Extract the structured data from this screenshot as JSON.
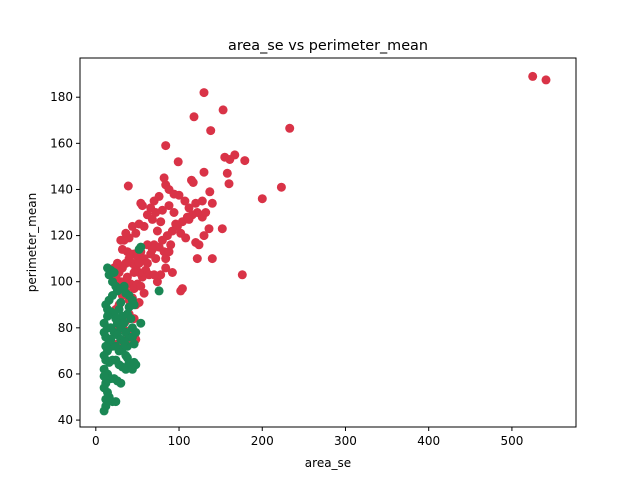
{
  "chart_data": {
    "type": "scatter",
    "title": "area_se vs perimeter_mean",
    "xlabel": "area_se",
    "ylabel": "perimeter_mean",
    "xlim": [
      -19,
      577
    ],
    "ylim": [
      37,
      197
    ],
    "x_ticks": [
      0,
      100,
      200,
      300,
      400,
      500
    ],
    "y_ticks": [
      40,
      60,
      80,
      100,
      120,
      140,
      160,
      180
    ],
    "grid": false,
    "series": [
      {
        "color": "#d93347",
        "points": [
          [
            525,
            189
          ],
          [
            541,
            187.5
          ],
          [
            130,
            182
          ],
          [
            118,
            171.5
          ],
          [
            153,
            174.5
          ],
          [
            233,
            166.5
          ],
          [
            138,
            165.5
          ],
          [
            84,
            159
          ],
          [
            99,
            152
          ],
          [
            167,
            155
          ],
          [
            179,
            152.5
          ],
          [
            155,
            154
          ],
          [
            161,
            153
          ],
          [
            130,
            147.5
          ],
          [
            158,
            147
          ],
          [
            223,
            141
          ],
          [
            115,
            144
          ],
          [
            117,
            143
          ],
          [
            160,
            142.5
          ],
          [
            137,
            139
          ],
          [
            200,
            136
          ],
          [
            39,
            141.5
          ],
          [
            82,
            145
          ],
          [
            84,
            142
          ],
          [
            88,
            140
          ],
          [
            94,
            138
          ],
          [
            100,
            137.5
          ],
          [
            107,
            135
          ],
          [
            112,
            132
          ],
          [
            120,
            134
          ],
          [
            128,
            135
          ],
          [
            128,
            128
          ],
          [
            132,
            130
          ],
          [
            122,
            130
          ],
          [
            116,
            129
          ],
          [
            110,
            128
          ],
          [
            104,
            126
          ],
          [
            98,
            124
          ],
          [
            92,
            122
          ],
          [
            86,
            120
          ],
          [
            80,
            118
          ],
          [
            74,
            122
          ],
          [
            68,
            127
          ],
          [
            62,
            129
          ],
          [
            56,
            133
          ],
          [
            54,
            134
          ],
          [
            70,
            135
          ],
          [
            76,
            137
          ],
          [
            80,
            131
          ],
          [
            88,
            133
          ],
          [
            94,
            130
          ],
          [
            96,
            125
          ],
          [
            102,
            121
          ],
          [
            108,
            119
          ],
          [
            120,
            117
          ],
          [
            124,
            116
          ],
          [
            130,
            120
          ],
          [
            136,
            123
          ],
          [
            122,
            110
          ],
          [
            140,
            110
          ],
          [
            176,
            103
          ],
          [
            104,
            97
          ],
          [
            102,
            96
          ],
          [
            152,
            123
          ],
          [
            66,
            132
          ],
          [
            72,
            130
          ],
          [
            78,
            126
          ],
          [
            58,
            124
          ],
          [
            52,
            125
          ],
          [
            48,
            121
          ],
          [
            44,
            124
          ],
          [
            40,
            119
          ],
          [
            36,
            121
          ],
          [
            34,
            118
          ],
          [
            30,
            118
          ],
          [
            32,
            114
          ],
          [
            38,
            113
          ],
          [
            42,
            112
          ],
          [
            46,
            112
          ],
          [
            50,
            111
          ],
          [
            54,
            113
          ],
          [
            58,
            110
          ],
          [
            62,
            108
          ],
          [
            66,
            112
          ],
          [
            70,
            116
          ],
          [
            76,
            115
          ],
          [
            82,
            113
          ],
          [
            84,
            110
          ],
          [
            88,
            113
          ],
          [
            90,
            116
          ],
          [
            60,
            105
          ],
          [
            64,
            103
          ],
          [
            56,
            102
          ],
          [
            52,
            104
          ],
          [
            48,
            106
          ],
          [
            44,
            108
          ],
          [
            40,
            110
          ],
          [
            36,
            108
          ],
          [
            32,
            106
          ],
          [
            28,
            104
          ],
          [
            26,
            108
          ],
          [
            22,
            106
          ],
          [
            24,
            102
          ],
          [
            30,
            100
          ],
          [
            34,
            100
          ],
          [
            38,
            102
          ],
          [
            42,
            99
          ],
          [
            46,
            97
          ],
          [
            50,
            99
          ],
          [
            54,
            98
          ],
          [
            58,
            95
          ],
          [
            44,
            93
          ],
          [
            40,
            92
          ],
          [
            36,
            96
          ],
          [
            32,
            94
          ],
          [
            28,
            90
          ],
          [
            24,
            88
          ],
          [
            48,
            90
          ],
          [
            52,
            91
          ],
          [
            46,
            84
          ],
          [
            40,
            86
          ],
          [
            36,
            83
          ],
          [
            30,
            83
          ],
          [
            28,
            80
          ],
          [
            34,
            79
          ],
          [
            42,
            79
          ],
          [
            38,
            75
          ],
          [
            48,
            75
          ],
          [
            32,
            73
          ],
          [
            26,
            73
          ],
          [
            46,
            104
          ],
          [
            52,
            108
          ],
          [
            62,
            116
          ],
          [
            68,
            114
          ],
          [
            72,
            110
          ],
          [
            74,
            100
          ],
          [
            78,
            103
          ],
          [
            84,
            106
          ],
          [
            92,
            104
          ],
          [
            70,
            103
          ],
          [
            112,
            127
          ],
          [
            140,
            134
          ]
        ]
      },
      {
        "color": "#1a8754",
        "points": [
          [
            14,
            106
          ],
          [
            18,
            105
          ],
          [
            22,
            104
          ],
          [
            16,
            103
          ],
          [
            54,
            115
          ],
          [
            20,
            100
          ],
          [
            24,
            98
          ],
          [
            26,
            96
          ],
          [
            30,
            97
          ],
          [
            34,
            98
          ],
          [
            36,
            95
          ],
          [
            40,
            94
          ],
          [
            44,
            92
          ],
          [
            46,
            90
          ],
          [
            12,
            90
          ],
          [
            14,
            88
          ],
          [
            18,
            87
          ],
          [
            22,
            86
          ],
          [
            28,
            88
          ],
          [
            32,
            85
          ],
          [
            38,
            86
          ],
          [
            42,
            84
          ],
          [
            24,
            84
          ],
          [
            26,
            82
          ],
          [
            30,
            80
          ],
          [
            34,
            82
          ],
          [
            36,
            78
          ],
          [
            40,
            76
          ],
          [
            44,
            76
          ],
          [
            46,
            73
          ],
          [
            38,
            72
          ],
          [
            32,
            71
          ],
          [
            28,
            70
          ],
          [
            24,
            72
          ],
          [
            20,
            72
          ],
          [
            16,
            74
          ],
          [
            12,
            76
          ],
          [
            10,
            78
          ],
          [
            14,
            80
          ],
          [
            18,
            80
          ],
          [
            22,
            78
          ],
          [
            26,
            77
          ],
          [
            30,
            75
          ],
          [
            34,
            74
          ],
          [
            12,
            72
          ],
          [
            14,
            70
          ],
          [
            10,
            68
          ],
          [
            12,
            66
          ],
          [
            16,
            65
          ],
          [
            20,
            66
          ],
          [
            24,
            66
          ],
          [
            28,
            64
          ],
          [
            32,
            63
          ],
          [
            36,
            62
          ],
          [
            40,
            65
          ],
          [
            48,
            64
          ],
          [
            10,
            62
          ],
          [
            14,
            60
          ],
          [
            18,
            58
          ],
          [
            22,
            58
          ],
          [
            26,
            57
          ],
          [
            30,
            56
          ],
          [
            12,
            56
          ],
          [
            10,
            54
          ],
          [
            14,
            52
          ],
          [
            16,
            50
          ],
          [
            20,
            48
          ],
          [
            24,
            48
          ],
          [
            12,
            49
          ],
          [
            10,
            44
          ],
          [
            44,
            62
          ],
          [
            46,
            65
          ],
          [
            54,
            82
          ],
          [
            76,
            96
          ],
          [
            52,
            114
          ],
          [
            20,
            94
          ],
          [
            16,
            92
          ],
          [
            44,
            80
          ],
          [
            48,
            78
          ],
          [
            18,
            75
          ],
          [
            14,
            85
          ],
          [
            10,
            82
          ],
          [
            30,
            91
          ],
          [
            40,
            89
          ],
          [
            36,
            68
          ],
          [
            38,
            67
          ],
          [
            10,
            59
          ],
          [
            12,
            46
          ]
        ]
      }
    ]
  }
}
